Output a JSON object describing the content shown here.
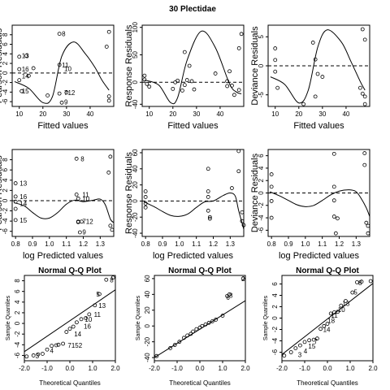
{
  "title": "30 Plectidae",
  "chart_data": [
    {
      "type": "scatter",
      "ylabel": "Pearson Residuals",
      "xlabel": "Fitted values",
      "xlim": [
        7,
        50
      ],
      "ylim": [
        -7,
        10
      ],
      "xticks": [
        10,
        20,
        30,
        40
      ],
      "yticks": [
        -6,
        -4,
        -2,
        0,
        2,
        4,
        6,
        8
      ],
      "zero_line": true,
      "points": [
        [
          10,
          3.4
        ],
        [
          10,
          0.8
        ],
        [
          10,
          -1.5
        ],
        [
          11,
          -3.8
        ],
        [
          13,
          3.6
        ],
        [
          14,
          -0.6
        ],
        [
          16,
          1
        ],
        [
          22,
          -4.7
        ],
        [
          27,
          8.2
        ],
        [
          27,
          1.7
        ],
        [
          27,
          -4.3
        ],
        [
          28,
          -6.2
        ],
        [
          30,
          -4.1
        ],
        [
          47,
          5.5
        ],
        [
          48,
          8.6
        ],
        [
          48,
          -4.9
        ],
        [
          48,
          -5.8
        ]
      ],
      "labels": [
        {
          "x": 27,
          "y": 8.2,
          "t": "8"
        },
        {
          "x": 10,
          "y": 3.6,
          "t": "13"
        },
        {
          "x": 27,
          "y": 1.7,
          "t": "11"
        },
        {
          "x": 28,
          "y": 0.9,
          "t": "10"
        },
        {
          "x": 10,
          "y": 0.8,
          "t": "16"
        },
        {
          "x": 10,
          "y": -0.6,
          "t": "14"
        },
        {
          "x": 10,
          "y": -3.8,
          "t": "15"
        },
        {
          "x": 28,
          "y": -4.1,
          "t": "712"
        },
        {
          "x": 28,
          "y": -6.1,
          "t": "9"
        }
      ],
      "curve": [
        [
          8,
          -1.8
        ],
        [
          14,
          -3.2
        ],
        [
          20,
          -6.2
        ],
        [
          24,
          -5
        ],
        [
          28,
          3.5
        ],
        [
          33,
          6.5
        ],
        [
          38,
          4
        ],
        [
          42,
          1.2
        ],
        [
          45,
          -1.5
        ],
        [
          48,
          -3.6
        ]
      ]
    },
    {
      "type": "scatter",
      "ylabel": "Response Residuals",
      "xlabel": "Fitted values",
      "xlim": [
        7,
        50
      ],
      "ylim": [
        -44,
        104
      ],
      "xticks": [
        10,
        20,
        30,
        40
      ],
      "yticks": [
        -40,
        0,
        50,
        100
      ],
      "zero_line": true,
      "points": [
        [
          8,
          12
        ],
        [
          8,
          5
        ],
        [
          9,
          -3
        ],
        [
          10,
          -8
        ],
        [
          20,
          -12
        ],
        [
          21,
          0
        ],
        [
          22,
          3
        ],
        [
          24,
          -15
        ],
        [
          25,
          -5
        ],
        [
          25,
          55
        ],
        [
          26,
          4
        ],
        [
          27,
          30
        ],
        [
          28,
          2
        ],
        [
          29,
          -13
        ],
        [
          38,
          16
        ],
        [
          43,
          2
        ],
        [
          43,
          -7
        ],
        [
          44,
          20
        ],
        [
          45,
          -6
        ],
        [
          46,
          -23
        ],
        [
          48,
          -14
        ],
        [
          48,
          62
        ],
        [
          49,
          88
        ]
      ],
      "curve": [
        [
          8,
          4
        ],
        [
          14,
          -5
        ],
        [
          19,
          -37
        ],
        [
          22,
          -28
        ],
        [
          26,
          40
        ],
        [
          32,
          93
        ],
        [
          38,
          63
        ],
        [
          44,
          -3
        ],
        [
          47,
          -18
        ],
        [
          49,
          -21
        ]
      ]
    },
    {
      "type": "scatter",
      "ylabel": "Deviance Residuals",
      "xlabel": "Fitted values",
      "xlim": [
        7,
        50
      ],
      "ylim": [
        -7,
        7
      ],
      "xticks": [
        10,
        20,
        30,
        40
      ],
      "yticks": [
        -5,
        0,
        5
      ],
      "zero_line": true,
      "points": [
        [
          10,
          3
        ],
        [
          10,
          1
        ],
        [
          10,
          -1
        ],
        [
          11,
          -3.8
        ],
        [
          22,
          -6.6
        ],
        [
          26,
          4
        ],
        [
          27,
          -5.3
        ],
        [
          27,
          1.1
        ],
        [
          28,
          -1.4
        ],
        [
          30,
          -1.9
        ],
        [
          46,
          -3.8
        ],
        [
          47,
          6.3
        ],
        [
          47,
          -4.8
        ],
        [
          48,
          4.5
        ],
        [
          48,
          -5.3
        ],
        [
          48,
          -6.6
        ]
      ],
      "curve": [
        [
          8,
          -1.9
        ],
        [
          14,
          -3.2
        ],
        [
          20,
          -6.4
        ],
        [
          24,
          -4.2
        ],
        [
          28,
          3.2
        ],
        [
          32,
          6.2
        ],
        [
          38,
          4.1
        ],
        [
          42,
          0.8
        ],
        [
          46,
          -2.7
        ],
        [
          48,
          -4.2
        ]
      ]
    },
    {
      "type": "scatter",
      "ylabel": "Pearson Residuals",
      "xlabel": "log Predicted values",
      "xlim": [
        0.78,
        1.38
      ],
      "ylim": [
        -7,
        10
      ],
      "xticks": [
        0.8,
        0.9,
        1.0,
        1.1,
        1.2,
        1.3
      ],
      "yticks": [
        -6,
        -4,
        -2,
        0,
        2,
        4,
        6,
        8
      ],
      "zero_line": true,
      "points": [
        [
          0.8,
          3.4
        ],
        [
          0.8,
          0.8
        ],
        [
          0.8,
          -0.2
        ],
        [
          0.8,
          -1.6
        ],
        [
          0.8,
          -3.8
        ],
        [
          1.16,
          8.2
        ],
        [
          1.16,
          1.2
        ],
        [
          1.17,
          0.4
        ],
        [
          1.17,
          -4.1
        ],
        [
          1.17,
          -4.2
        ],
        [
          1.18,
          -6.2
        ],
        [
          1.19,
          -4.1
        ],
        [
          1.35,
          5.5
        ],
        [
          1.36,
          8.6
        ],
        [
          1.36,
          -4.9
        ],
        [
          1.37,
          -5.7
        ]
      ],
      "labels": [
        {
          "x": 1.17,
          "y": 8.2,
          "t": "8"
        },
        {
          "x": 0.81,
          "y": 3.4,
          "t": "13"
        },
        {
          "x": 1.18,
          "y": 1.2,
          "t": "11"
        },
        {
          "x": 1.18,
          "y": 0.4,
          "t": "10"
        },
        {
          "x": 0.81,
          "y": 0.8,
          "t": "16"
        },
        {
          "x": 0.81,
          "y": -0.6,
          "t": "14"
        },
        {
          "x": 0.81,
          "y": -3.8,
          "t": "15"
        },
        {
          "x": 1.18,
          "y": -4.1,
          "t": "712"
        },
        {
          "x": 1.18,
          "y": -6.1,
          "t": "9"
        }
      ],
      "curve": [
        [
          0.79,
          -0.4
        ],
        [
          0.85,
          -1
        ],
        [
          0.9,
          -2.3
        ],
        [
          0.95,
          -3.4
        ],
        [
          1.0,
          -3.4
        ],
        [
          1.05,
          -2.3
        ],
        [
          1.1,
          -0.7
        ],
        [
          1.15,
          0.1
        ],
        [
          1.2,
          -0.2
        ],
        [
          1.26,
          0.1
        ],
        [
          1.3,
          0.3
        ],
        [
          1.33,
          -0.8
        ],
        [
          1.36,
          -3.6
        ],
        [
          1.38,
          -4.3
        ]
      ]
    },
    {
      "type": "scatter",
      "ylabel": "Response Residuals",
      "xlabel": "log Predicted values",
      "xlim": [
        0.78,
        1.38
      ],
      "ylim": [
        -44,
        64
      ],
      "xticks": [
        0.8,
        0.9,
        1.0,
        1.1,
        1.2,
        1.3
      ],
      "yticks": [
        -40,
        -20,
        0,
        20,
        40,
        60
      ],
      "zero_line": true,
      "points": [
        [
          0.8,
          12
        ],
        [
          0.8,
          5
        ],
        [
          0.8,
          -3
        ],
        [
          0.8,
          -8
        ],
        [
          1.17,
          40
        ],
        [
          1.17,
          12
        ],
        [
          1.17,
          5
        ],
        [
          1.17,
          -12
        ],
        [
          1.18,
          -20
        ],
        [
          1.18,
          -22
        ],
        [
          1.31,
          16
        ],
        [
          1.35,
          62
        ],
        [
          1.35,
          37
        ],
        [
          1.37,
          -25
        ],
        [
          1.37,
          -14
        ],
        [
          1.38,
          -30
        ]
      ],
      "curve": [
        [
          0.79,
          -1
        ],
        [
          0.85,
          -7
        ],
        [
          0.9,
          -13
        ],
        [
          0.95,
          -18
        ],
        [
          1.0,
          -19
        ],
        [
          1.05,
          -16
        ],
        [
          1.1,
          -8
        ],
        [
          1.15,
          -1
        ],
        [
          1.2,
          0
        ],
        [
          1.26,
          7
        ],
        [
          1.3,
          10
        ],
        [
          1.33,
          6
        ],
        [
          1.35,
          -12
        ],
        [
          1.38,
          -35
        ]
      ]
    },
    {
      "type": "scatter",
      "ylabel": "Deviance Residuals",
      "xlabel": "log Predicted values",
      "xlim": [
        0.78,
        1.38
      ],
      "ylim": [
        -7,
        7
      ],
      "xticks": [
        0.8,
        0.9,
        1.0,
        1.1,
        1.2,
        1.3
      ],
      "yticks": [
        -6,
        -4,
        -2,
        0,
        2,
        4,
        6
      ],
      "zero_line": true,
      "points": [
        [
          0.8,
          3
        ],
        [
          0.8,
          1
        ],
        [
          0.8,
          -1.3
        ],
        [
          0.8,
          -4
        ],
        [
          1.17,
          6.3
        ],
        [
          1.17,
          1
        ],
        [
          1.17,
          -1.2
        ],
        [
          1.17,
          -3.8
        ],
        [
          1.18,
          -6.5
        ],
        [
          1.19,
          -4.1
        ],
        [
          1.35,
          6.4
        ],
        [
          1.35,
          4.5
        ],
        [
          1.36,
          -4.8
        ],
        [
          1.37,
          -5.3
        ],
        [
          1.37,
          -6.5
        ]
      ],
      "curve": [
        [
          0.79,
          0.2
        ],
        [
          0.85,
          -0.5
        ],
        [
          0.9,
          -1.2
        ],
        [
          0.95,
          -1.9
        ],
        [
          1.0,
          -2.2
        ],
        [
          1.05,
          -2
        ],
        [
          1.1,
          -1.2
        ],
        [
          1.15,
          -0.3
        ],
        [
          1.2,
          0.3
        ],
        [
          1.26,
          0.5
        ],
        [
          1.3,
          0.2
        ],
        [
          1.33,
          -0.9
        ],
        [
          1.36,
          -2.4
        ],
        [
          1.38,
          -3.8
        ]
      ]
    },
    {
      "type": "qq",
      "title": "Normal Q-Q Plot",
      "xlabel": "Theoretical Quantiles",
      "ylabel": "Sample Quantiles",
      "xlim": [
        -2,
        2
      ],
      "ylim": [
        -7,
        9
      ],
      "xticks": [
        -2,
        -1,
        0,
        1,
        2
      ],
      "yticks": [
        -6,
        -4,
        -2,
        0,
        2,
        4,
        6,
        8
      ],
      "points": [
        [
          -1.9,
          -6.2
        ],
        [
          -1.6,
          -6
        ],
        [
          -1.4,
          -5.8
        ],
        [
          -1.2,
          -5.7
        ],
        [
          -1,
          -4.9
        ],
        [
          -0.8,
          -4.2
        ],
        [
          -0.6,
          -4.1
        ],
        [
          -0.5,
          -4
        ],
        [
          -0.3,
          -3.8
        ],
        [
          -0.15,
          -1.6
        ],
        [
          0,
          -1
        ],
        [
          0.15,
          -0.6
        ],
        [
          0.3,
          0.2
        ],
        [
          0.5,
          0.8
        ],
        [
          0.7,
          1
        ],
        [
          0.85,
          1.7
        ],
        [
          1.1,
          3.4
        ],
        [
          1.3,
          5.5
        ],
        [
          1.6,
          8.2
        ],
        [
          1.9,
          8.6
        ]
      ],
      "labels": [
        {
          "x": -1.62,
          "y": -6.1,
          "t": "3"
        },
        {
          "x": -0.98,
          "y": -5.1,
          "t": "4"
        },
        {
          "x": -0.2,
          "y": -4.1,
          "t": "7152"
        },
        {
          "x": 0.08,
          "y": -2,
          "t": "14"
        },
        {
          "x": 0.5,
          "y": -0.5,
          "t": "16"
        },
        {
          "x": 0.55,
          "y": 0.8,
          "t": "10"
        },
        {
          "x": 0.95,
          "y": 1.7,
          "t": "11"
        },
        {
          "x": 1.15,
          "y": 3.4,
          "t": "13"
        },
        {
          "x": 1.05,
          "y": 5.5,
          "t": "5"
        },
        {
          "x": 1.65,
          "y": 8.2,
          "t": "8"
        }
      ],
      "line": [
        [
          -2,
          -5.3
        ],
        [
          2,
          6.3
        ]
      ]
    },
    {
      "type": "qq",
      "title": "Normal Q-Q Plot",
      "xlabel": "Theoretical Quantiles",
      "ylabel": "Sample Quantiles",
      "xlim": [
        -2,
        2
      ],
      "ylim": [
        -44,
        64
      ],
      "xticks": [
        -2,
        -1,
        0,
        1,
        2
      ],
      "yticks": [
        -40,
        -20,
        0,
        20,
        40,
        60
      ],
      "points": [
        [
          -1.9,
          -38
        ],
        [
          -1.3,
          -28
        ],
        [
          -1.1,
          -24
        ],
        [
          -0.9,
          -20
        ],
        [
          -0.7,
          -15
        ],
        [
          -0.55,
          -12
        ],
        [
          -0.4,
          -10
        ],
        [
          -0.3,
          -7
        ],
        [
          -0.15,
          -4
        ],
        [
          0,
          -2
        ],
        [
          0.1,
          0
        ],
        [
          0.25,
          2
        ],
        [
          0.4,
          4
        ],
        [
          0.55,
          6
        ],
        [
          0.7,
          8
        ],
        [
          1,
          13
        ],
        [
          1.2,
          38
        ],
        [
          1.3,
          40
        ],
        [
          1.9,
          60
        ]
      ],
      "labels": [
        {
          "x": 1.05,
          "y": 36,
          "t": "6"
        },
        {
          "x": 1.18,
          "y": 39,
          "t": "8"
        },
        {
          "x": 1.72,
          "y": 60,
          "t": "2"
        }
      ],
      "line": [
        [
          -2,
          -40
        ],
        [
          2,
          32
        ]
      ]
    },
    {
      "type": "qq",
      "title": "Normal Q-Q Plot",
      "xlabel": "Theoretical Quantiles",
      "ylabel": "Sample Quantiles",
      "xlim": [
        -2,
        2
      ],
      "ylim": [
        -7.5,
        7.5
      ],
      "xticks": [
        -2,
        -1,
        0,
        1,
        2
      ],
      "yticks": [
        -6,
        -4,
        -2,
        0,
        2,
        4,
        6
      ],
      "points": [
        [
          -1.9,
          -6.6
        ],
        [
          -1.6,
          -6
        ],
        [
          -1.4,
          -5.3
        ],
        [
          -1.2,
          -4.8
        ],
        [
          -1,
          -4.2
        ],
        [
          -0.8,
          -3.9
        ],
        [
          -0.6,
          -3.8
        ],
        [
          -0.45,
          -3.6
        ],
        [
          -0.3,
          -1.9
        ],
        [
          -0.15,
          -1.4
        ],
        [
          0,
          -1
        ],
        [
          0.15,
          0.8
        ],
        [
          0.3,
          1
        ],
        [
          0.45,
          1.1
        ],
        [
          0.6,
          2.2
        ],
        [
          0.8,
          3
        ],
        [
          1.1,
          4.5
        ],
        [
          1.3,
          6.3
        ],
        [
          1.5,
          6.4
        ],
        [
          1.9,
          6.5
        ]
      ],
      "labels": [
        {
          "x": -1.4,
          "y": -6.4,
          "t": "3"
        },
        {
          "x": -1.15,
          "y": -5.8,
          "t": "4"
        },
        {
          "x": -0.95,
          "y": -4.9,
          "t": "15"
        },
        {
          "x": -0.7,
          "y": -4.1,
          "t": "7"
        },
        {
          "x": -0.3,
          "y": -2,
          "t": "14"
        },
        {
          "x": -0.1,
          "y": -0.4,
          "t": "18"
        },
        {
          "x": 0.05,
          "y": 0.5,
          "t": "11"
        },
        {
          "x": 0.35,
          "y": 1.5,
          "t": "10"
        },
        {
          "x": 0.55,
          "y": 2.6,
          "t": "13"
        },
        {
          "x": 1.05,
          "y": 4.6,
          "t": "5"
        },
        {
          "x": 1.25,
          "y": 6.2,
          "t": "8"
        }
      ],
      "line": [
        [
          -2,
          -6.4
        ],
        [
          2,
          6.1
        ]
      ]
    }
  ]
}
